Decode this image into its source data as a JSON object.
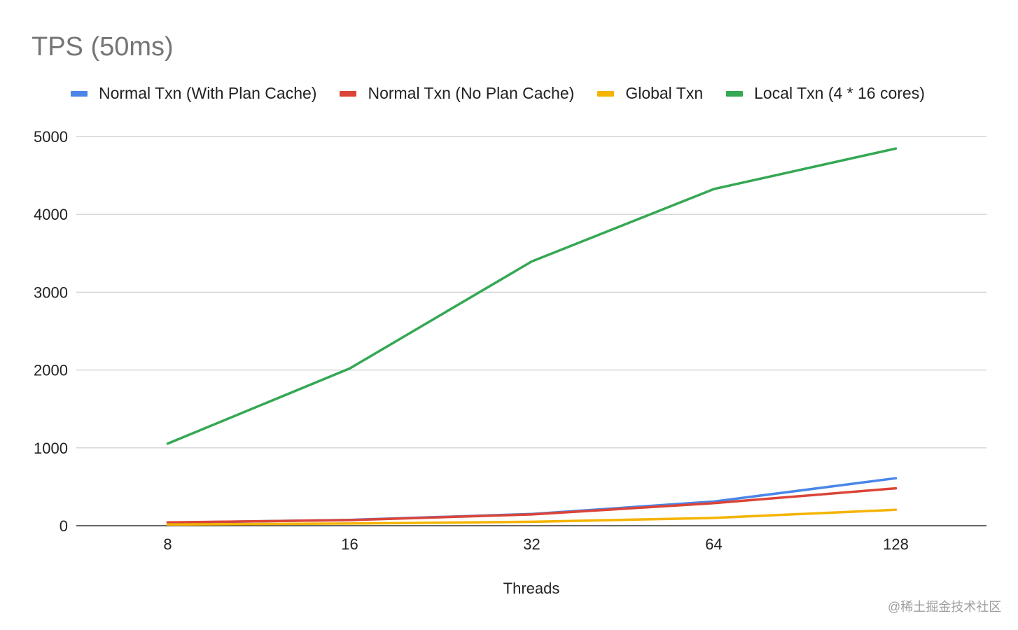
{
  "chart_data": {
    "type": "line",
    "title": "TPS (50ms)",
    "xlabel": "Threads",
    "ylabel": "",
    "categories": [
      "8",
      "16",
      "32",
      "64",
      "128"
    ],
    "ylim": [
      0,
      5000
    ],
    "yticks": [
      "0",
      "1000",
      "2000",
      "3000",
      "4000",
      "5000"
    ],
    "grid": true,
    "legend_position": "top",
    "series": [
      {
        "name": "Normal Txn (With Plan Cache)",
        "color": "#4a86e8",
        "values": [
          40,
          75,
          150,
          310,
          610
        ]
      },
      {
        "name": "Normal Txn (No Plan Cache)",
        "color": "#db4437",
        "values": [
          42,
          72,
          145,
          290,
          480
        ]
      },
      {
        "name": "Global Txn",
        "color": "#f4b400",
        "values": [
          15,
          28,
          50,
          100,
          205
        ]
      },
      {
        "name": "Local Txn (4 * 16 cores)",
        "color": "#34a853",
        "values": [
          1055,
          2020,
          3395,
          4325,
          4845
        ]
      }
    ]
  },
  "watermark": "@稀土掘金技术社区"
}
